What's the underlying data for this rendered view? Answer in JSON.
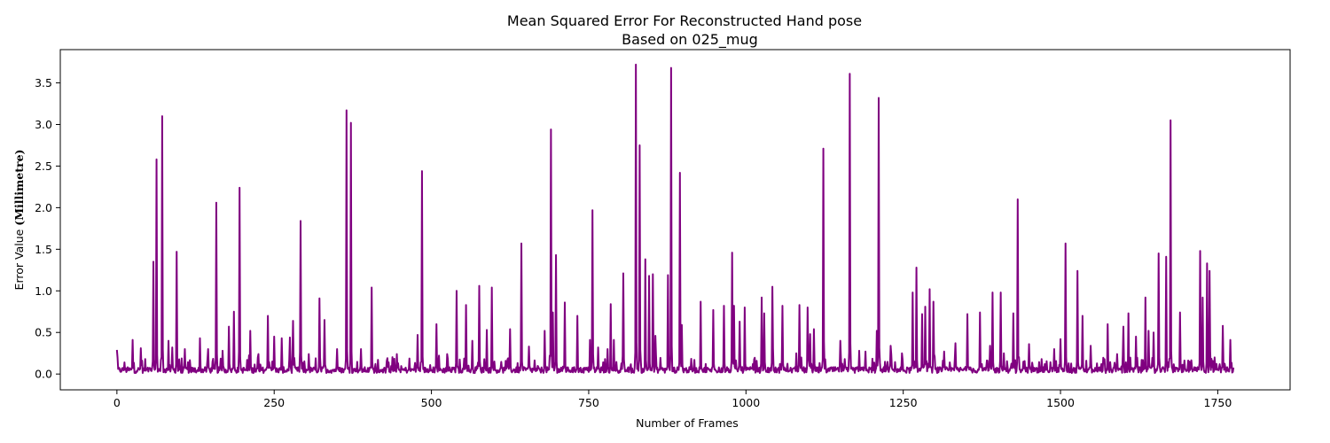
{
  "chart_data": {
    "type": "line",
    "title": "Mean Squared Error For Reconstructed Hand pose",
    "subtitle": "Based on 025_mug",
    "xlabel": "Number of Frames",
    "ylabel_prefix": "Error Value ",
    "ylabel_unit": "(Millimetre)",
    "xlim": [
      -90,
      1865
    ],
    "ylim": [
      -0.19,
      3.9
    ],
    "x_ticks": [
      0,
      250,
      500,
      750,
      1000,
      1250,
      1500,
      1750
    ],
    "y_ticks": [
      0.0,
      0.5,
      1.0,
      1.5,
      2.0,
      2.5,
      3.0,
      3.5
    ],
    "x_tick_labels": [
      "0",
      "250",
      "500",
      "750",
      "1000",
      "1250",
      "1500",
      "1750"
    ],
    "y_tick_labels": [
      "0.0",
      "0.5",
      "1.0",
      "1.5",
      "2.0",
      "2.5",
      "3.0",
      "3.5"
    ],
    "grid": false,
    "legend": "none",
    "line_color": "#800080",
    "frame_count": 1776,
    "baseline_level": 0.06,
    "series": [
      {
        "peaks": [
          [
            0,
            0.29
          ],
          [
            12,
            0.14
          ],
          [
            25,
            0.41
          ],
          [
            38,
            0.31
          ],
          [
            45,
            0.18
          ],
          [
            58,
            1.35
          ],
          [
            63,
            2.58
          ],
          [
            72,
            3.1
          ],
          [
            82,
            0.4
          ],
          [
            88,
            0.32
          ],
          [
            95,
            1.47
          ],
          [
            108,
            0.3
          ],
          [
            132,
            0.43
          ],
          [
            145,
            0.3
          ],
          [
            158,
            2.06
          ],
          [
            168,
            0.28
          ],
          [
            178,
            0.57
          ],
          [
            186,
            0.75
          ],
          [
            195,
            2.24
          ],
          [
            212,
            0.52
          ],
          [
            225,
            0.24
          ],
          [
            240,
            0.7
          ],
          [
            250,
            0.45
          ],
          [
            262,
            0.43
          ],
          [
            275,
            0.44
          ],
          [
            280,
            0.64
          ],
          [
            292,
            1.84
          ],
          [
            305,
            0.24
          ],
          [
            322,
            0.91
          ],
          [
            330,
            0.65
          ],
          [
            350,
            0.3
          ],
          [
            365,
            3.17
          ],
          [
            372,
            3.02
          ],
          [
            388,
            0.3
          ],
          [
            405,
            1.04
          ],
          [
            432,
            0.14
          ],
          [
            445,
            0.24
          ],
          [
            478,
            0.47
          ],
          [
            485,
            2.44
          ],
          [
            508,
            0.6
          ],
          [
            525,
            0.24
          ],
          [
            540,
            1.0
          ],
          [
            555,
            0.83
          ],
          [
            565,
            0.4
          ],
          [
            576,
            1.06
          ],
          [
            588,
            0.53
          ],
          [
            596,
            1.04
          ],
          [
            625,
            0.54
          ],
          [
            643,
            1.57
          ],
          [
            655,
            0.33
          ],
          [
            680,
            0.52
          ],
          [
            690,
            2.94
          ],
          [
            693,
            0.74
          ],
          [
            698,
            1.43
          ],
          [
            712,
            0.86
          ],
          [
            732,
            0.7
          ],
          [
            752,
            0.41
          ],
          [
            756,
            1.97
          ],
          [
            765,
            0.32
          ],
          [
            780,
            0.3
          ],
          [
            785,
            0.84
          ],
          [
            790,
            0.41
          ],
          [
            805,
            1.21
          ],
          [
            825,
            3.72
          ],
          [
            831,
            2.75
          ],
          [
            840,
            1.38
          ],
          [
            846,
            1.18
          ],
          [
            852,
            1.2
          ],
          [
            856,
            0.46
          ],
          [
            876,
            1.19
          ],
          [
            881,
            3.68
          ],
          [
            895,
            2.42
          ],
          [
            898,
            0.59
          ],
          [
            928,
            0.87
          ],
          [
            948,
            0.77
          ],
          [
            965,
            0.82
          ],
          [
            978,
            1.46
          ],
          [
            981,
            0.82
          ],
          [
            990,
            0.63
          ],
          [
            998,
            0.8
          ],
          [
            1025,
            0.92
          ],
          [
            1029,
            0.73
          ],
          [
            1042,
            1.05
          ],
          [
            1058,
            0.82
          ],
          [
            1080,
            0.25
          ],
          [
            1085,
            0.83
          ],
          [
            1098,
            0.8
          ],
          [
            1102,
            0.48
          ],
          [
            1108,
            0.54
          ],
          [
            1123,
            2.71
          ],
          [
            1150,
            0.4
          ],
          [
            1165,
            3.61
          ],
          [
            1180,
            0.28
          ],
          [
            1190,
            0.27
          ],
          [
            1208,
            0.52
          ],
          [
            1211,
            3.32
          ],
          [
            1230,
            0.34
          ],
          [
            1248,
            0.25
          ],
          [
            1265,
            0.98
          ],
          [
            1271,
            1.28
          ],
          [
            1280,
            0.72
          ],
          [
            1285,
            0.81
          ],
          [
            1292,
            1.02
          ],
          [
            1298,
            0.87
          ],
          [
            1315,
            0.27
          ],
          [
            1333,
            0.37
          ],
          [
            1352,
            0.72
          ],
          [
            1372,
            0.74
          ],
          [
            1388,
            0.34
          ],
          [
            1392,
            0.98
          ],
          [
            1405,
            0.98
          ],
          [
            1410,
            0.25
          ],
          [
            1425,
            0.73
          ],
          [
            1432,
            2.1
          ],
          [
            1450,
            0.36
          ],
          [
            1470,
            0.18
          ],
          [
            1490,
            0.3
          ],
          [
            1500,
            0.42
          ],
          [
            1508,
            1.57
          ],
          [
            1527,
            1.24
          ],
          [
            1535,
            0.7
          ],
          [
            1548,
            0.34
          ],
          [
            1565,
            0.12
          ],
          [
            1575,
            0.6
          ],
          [
            1590,
            0.24
          ],
          [
            1600,
            0.57
          ],
          [
            1608,
            0.73
          ],
          [
            1620,
            0.45
          ],
          [
            1635,
            0.92
          ],
          [
            1640,
            0.52
          ],
          [
            1648,
            0.5
          ],
          [
            1656,
            1.45
          ],
          [
            1668,
            1.41
          ],
          [
            1675,
            3.05
          ],
          [
            1690,
            0.74
          ],
          [
            1705,
            0.15
          ],
          [
            1722,
            1.48
          ],
          [
            1726,
            0.92
          ],
          [
            1733,
            1.33
          ],
          [
            1737,
            1.24
          ],
          [
            1745,
            0.2
          ],
          [
            1758,
            0.58
          ],
          [
            1770,
            0.41
          ]
        ]
      }
    ]
  }
}
